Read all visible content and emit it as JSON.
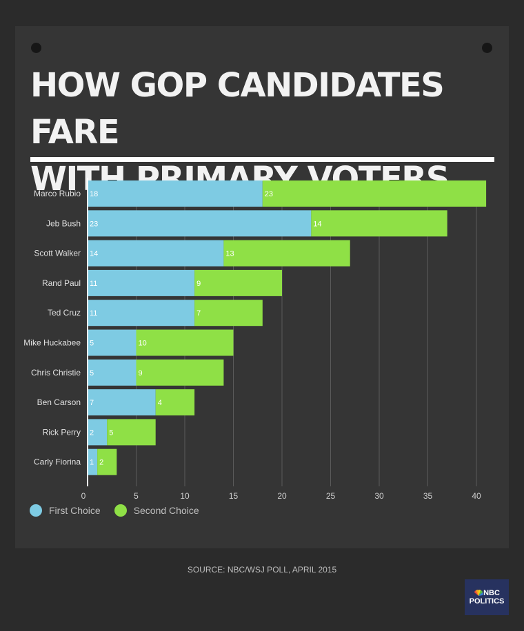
{
  "title": "HOW GOP CANDIDATES FARE\nWITH PRIMARY VOTERS",
  "source": "SOURCE: NBC/WSJ POLL, APRIL 2015",
  "logo": {
    "line1": "NBC",
    "line2": "POLITICS"
  },
  "colors": {
    "first": "#7ecbe3",
    "second": "#8fe046",
    "background": "#2b2b2b",
    "panel": "#353535"
  },
  "chart_data": {
    "type": "bar",
    "orientation": "horizontal",
    "stacked": true,
    "categories": [
      "Marco Rubio",
      "Jeb Bush",
      "Scott Walker",
      "Rand Paul",
      "Ted Cruz",
      "Mike Huckabee",
      "Chris Christie",
      "Ben Carson",
      "Rick Perry",
      "Carly Fiorina"
    ],
    "series": [
      {
        "name": "First Choice",
        "color": "#7ecbe3",
        "values": [
          18,
          23,
          14,
          11,
          11,
          5,
          5,
          7,
          2,
          1
        ]
      },
      {
        "name": "Second Choice",
        "color": "#8fe046",
        "values": [
          23,
          14,
          13,
          9,
          7,
          10,
          9,
          4,
          5,
          2
        ]
      }
    ],
    "xticks": [
      "0",
      "5",
      "10",
      "15",
      "20",
      "25",
      "30",
      "35",
      "40"
    ],
    "xlim": [
      0,
      42
    ],
    "grid": true,
    "legend_position": "bottom-left"
  }
}
